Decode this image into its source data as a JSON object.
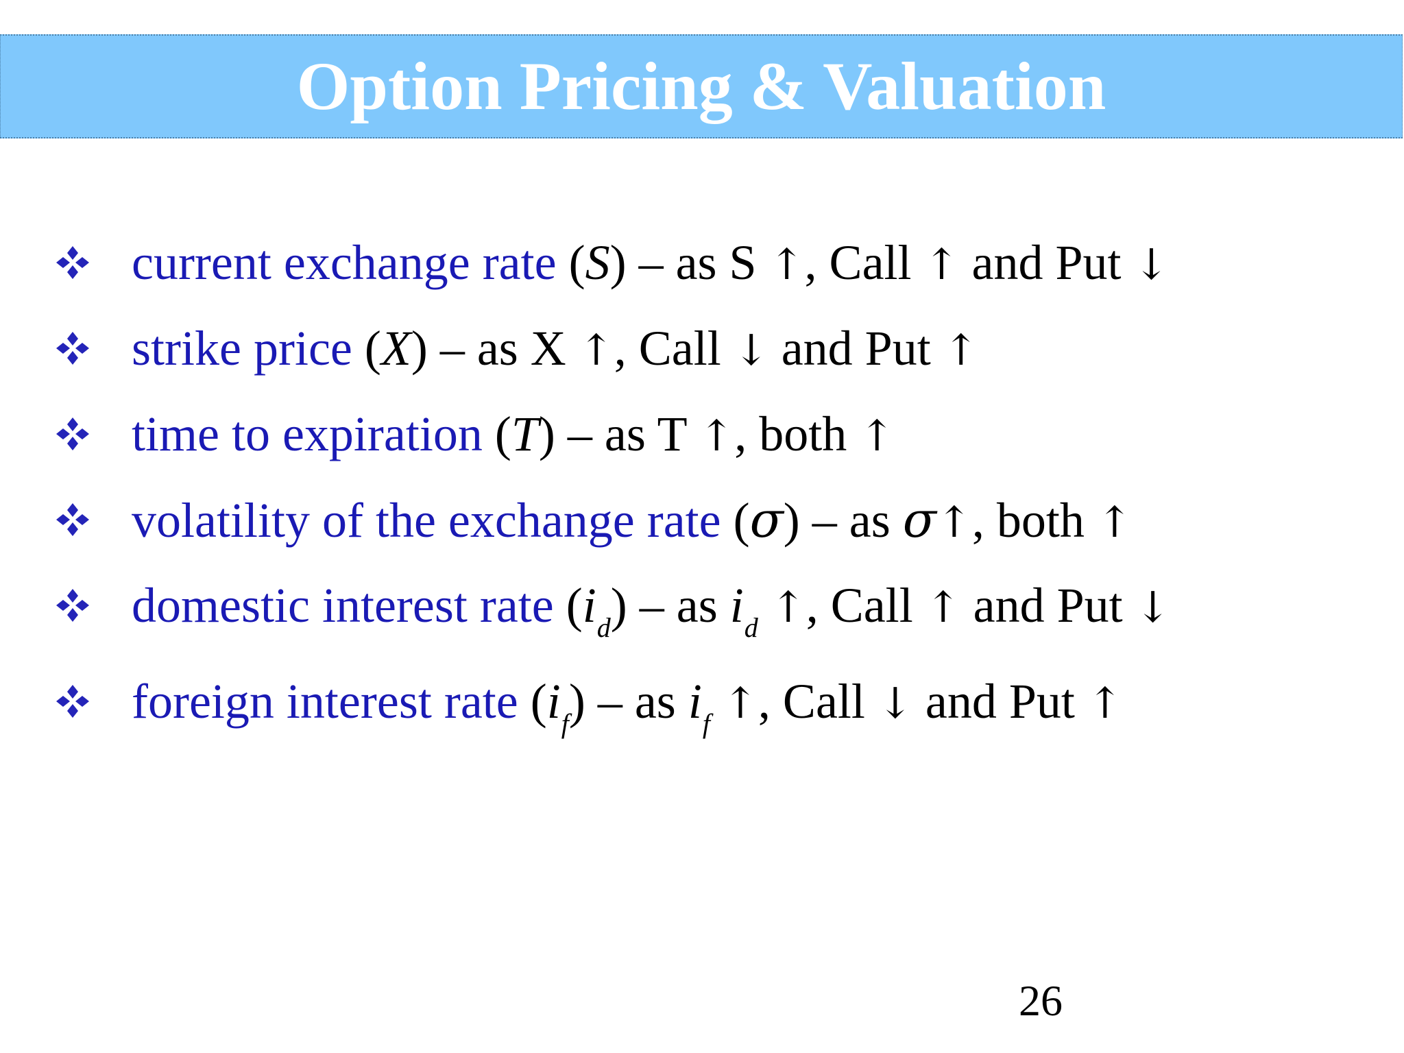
{
  "slide": {
    "title": "Option Pricing & Valuation",
    "page_number": "26"
  },
  "bullets": [
    {
      "term": "current exchange rate",
      "open": " (",
      "symbol": "S",
      "close": ")",
      "dash": " – as ",
      "var": "S",
      "var_style": "upright",
      "var_sub": "",
      "arrow1": "↑",
      "rest_a": ", Call ",
      "arrow2": "↑",
      "rest_b": " and Put ",
      "arrow3": "↓"
    },
    {
      "term": "strike price",
      "open": " (",
      "symbol": "X",
      "close": ")",
      "dash": " – as ",
      "var": "X",
      "var_style": "upright",
      "var_sub": "",
      "arrow1": "↑",
      "rest_a": ", Call ",
      "arrow2": "↓",
      "rest_b": " and Put ",
      "arrow3": "↑"
    },
    {
      "term": "time to expiration",
      "open": " (",
      "symbol": "T",
      "close": ")",
      "dash": " – as ",
      "var": "T",
      "var_style": "upright",
      "var_sub": "",
      "arrow1": "↑",
      "rest_a": ", both ",
      "arrow2": "↑",
      "rest_b": "",
      "arrow3": ""
    },
    {
      "term": "volatility of the exchange rate",
      "open": " (",
      "symbol": "σ",
      "close": ")",
      "dash": " – as ",
      "var": "σ",
      "var_style": "sigma",
      "var_sub": "",
      "arrow1": "↑",
      "rest_a": ", both ",
      "arrow2": "↑",
      "rest_b": "",
      "arrow3": ""
    },
    {
      "term": "domestic interest rate",
      "open": " (",
      "symbol": "i",
      "symbol_sub": "d",
      "close": ")",
      "dash": " – as ",
      "var": "i",
      "var_style": "italic",
      "var_sub": "d",
      "arrow1": "↑",
      "rest_a": ", Call ",
      "arrow2": "↑",
      "rest_b": " and Put ",
      "arrow3": "↓"
    },
    {
      "term": "foreign interest rate",
      "open": " (",
      "symbol": "i",
      "symbol_sub": "f",
      "close": ")",
      "dash": " – as ",
      "var": "i",
      "var_style": "italic",
      "var_sub": "f",
      "arrow1": "↑",
      "rest_a": ", Call ",
      "arrow2": "↓",
      "rest_b": " and Put ",
      "arrow3": "↑"
    }
  ],
  "colors": {
    "title_bar": "#80c8fc",
    "title_text": "#ffffff",
    "term_text": "#1a1ab4",
    "bullet_icon": "#2424b8",
    "body_text": "#000000"
  },
  "icons": {
    "bullet": "four-diamond-bullet-icon"
  }
}
